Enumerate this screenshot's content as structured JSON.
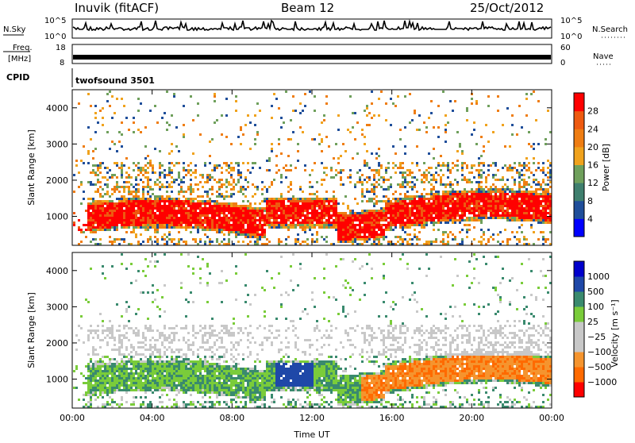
{
  "header": {
    "title": "Inuvik (fitACF)",
    "beam": "Beam 12",
    "date": "25/Oct/2012"
  },
  "top_panels": {
    "nsky_label": "N.Sky",
    "nsky_ticks": [
      "10^5",
      "10^0"
    ],
    "nsearch_label": "N.Search",
    "nsearch_ticks": [
      "10^5",
      "10^0"
    ],
    "freq_label_1": "Freq.",
    "freq_label_2": "[MHz]",
    "freq_ticks": [
      "18",
      "8"
    ],
    "nave_label": "Nave",
    "nave_ticks": [
      "60",
      "0"
    ],
    "cpid_label": "CPID",
    "cpid_value": "twofsound 3501"
  },
  "colors": {
    "power_scale": [
      "#0000ff",
      "#1f4e9a",
      "#3f7f6e",
      "#6fa05c",
      "#f0a21c",
      "#ef7d12",
      "#ee5a10",
      "#ff0000"
    ],
    "velocity_scale": [
      "#ff0000",
      "#ff6a00",
      "#f5942e",
      "#c8c8c8",
      "#c8c8c8",
      "#7acc3a",
      "#3a8a6e",
      "#1f48a8",
      "#0000cc"
    ]
  },
  "chart_data": [
    {
      "type": "heatmap",
      "panel": "power",
      "ylabel": "Slant Range [km]",
      "yticks": [
        "1000",
        "2000",
        "3000",
        "4000"
      ],
      "ylim": [
        200,
        4500
      ],
      "xticks": [
        "00:00",
        "04:00",
        "08:00",
        "12:00",
        "16:00",
        "20:00",
        "00:00"
      ],
      "colorbar_label": "Power [dB]",
      "colorbar_ticks": [
        "4",
        "8",
        "12",
        "16",
        "20",
        "24",
        "28"
      ],
      "colorbar_range": [
        0,
        32
      ]
    },
    {
      "type": "heatmap",
      "panel": "velocity",
      "ylabel": "Slant Range [km]",
      "yticks": [
        "1000",
        "2000",
        "3000",
        "4000"
      ],
      "ylim": [
        200,
        4500
      ],
      "xticks": [
        "00:00",
        "04:00",
        "08:00",
        "12:00",
        "16:00",
        "20:00",
        "00:00"
      ],
      "xlabel": "Time UT",
      "colorbar_label": "Velocity [m s⁻¹]",
      "colorbar_ticks": [
        "1000",
        "500",
        "100",
        "25",
        "−25",
        "−100",
        "−500",
        "−1000"
      ]
    }
  ]
}
